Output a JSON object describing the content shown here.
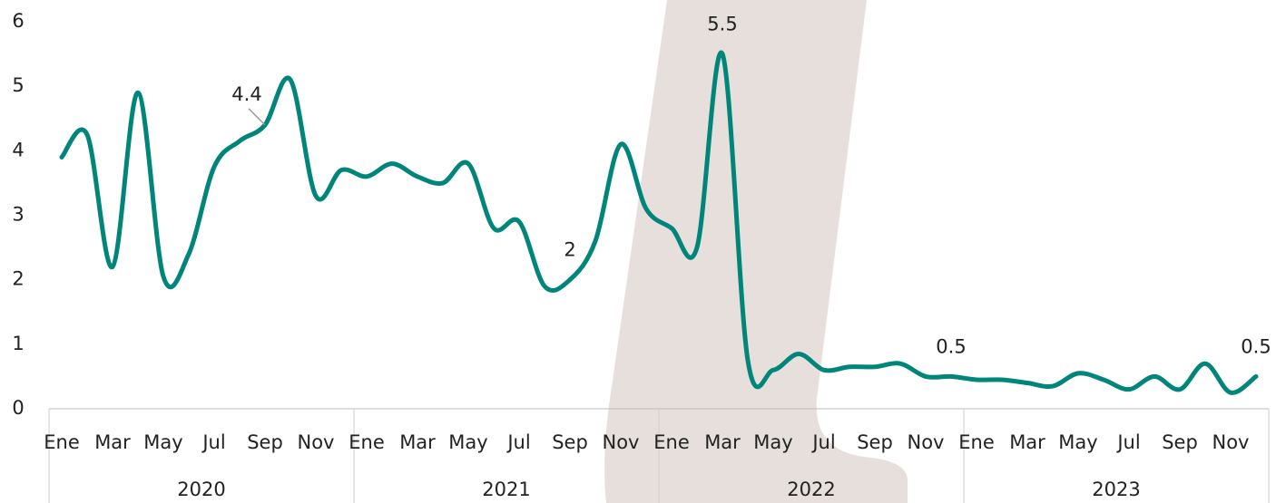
{
  "chart_data": {
    "type": "line",
    "categories": [
      "Ene",
      null,
      "Mar",
      null,
      "May",
      null,
      "Jul",
      null,
      "Sep",
      null,
      "Nov",
      null,
      "Ene",
      null,
      "Mar",
      null,
      "May",
      null,
      "Jul",
      null,
      "Sep",
      null,
      "Nov",
      null,
      "Ene",
      null,
      "Mar",
      null,
      "May",
      null,
      "Jul",
      null,
      "Sep",
      null,
      "Nov",
      null,
      "Ene",
      null,
      "Mar",
      null,
      "May",
      null,
      "Jul",
      null,
      "Sep",
      null,
      "Nov",
      null
    ],
    "years": [
      "2020",
      "2021",
      "2022",
      "2023"
    ],
    "series": [
      {
        "color": "#00857a",
        "values": [
          3.9,
          4.25,
          2.2,
          4.9,
          2.05,
          2.4,
          3.75,
          4.15,
          4.4,
          5.1,
          3.3,
          3.7,
          3.6,
          3.8,
          3.6,
          3.5,
          3.8,
          2.8,
          2.9,
          1.9,
          2,
          2.6,
          4.1,
          3.1,
          2.8,
          2.5,
          5.5,
          0.75,
          0.6,
          0.85,
          0.6,
          0.65,
          0.65,
          0.7,
          0.5,
          0.5,
          0.45,
          0.45,
          0.4,
          0.35,
          0.55,
          0.45,
          0.3,
          0.5,
          0.3,
          0.7,
          0.25,
          0.5
        ],
        "value_labels": [
          null,
          null,
          null,
          null,
          null,
          null,
          null,
          null,
          "4.4",
          null,
          null,
          null,
          null,
          null,
          null,
          null,
          null,
          null,
          null,
          null,
          "2",
          null,
          null,
          null,
          null,
          null,
          "5.5",
          null,
          null,
          null,
          null,
          null,
          null,
          null,
          null,
          "0.5",
          null,
          null,
          null,
          null,
          null,
          null,
          null,
          null,
          null,
          null,
          null,
          "0.5"
        ]
      }
    ],
    "ylim": [
      0,
      6
    ],
    "yticks": [
      0,
      1,
      2,
      3,
      4,
      5,
      6
    ]
  }
}
